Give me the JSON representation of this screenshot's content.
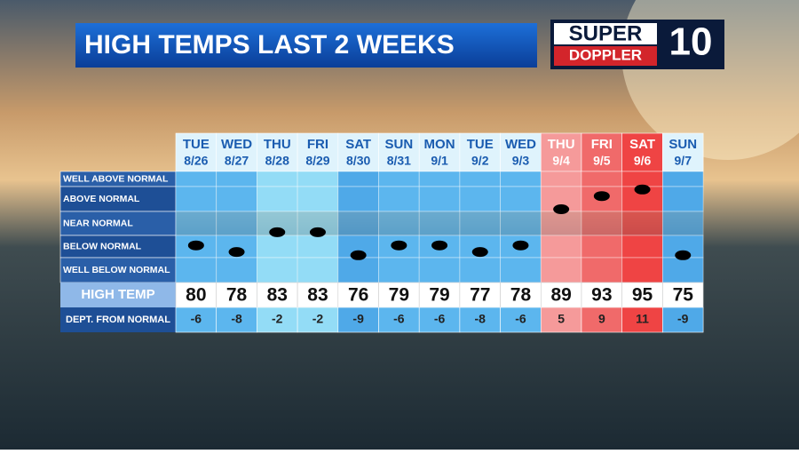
{
  "header": {
    "title": "HIGH TEMPS LAST 2 WEEKS"
  },
  "logo": {
    "line1": "SUPER",
    "line2": "DOPPLER",
    "number": "10"
  },
  "table": {
    "row_labels": [
      "WELL ABOVE NORMAL",
      "ABOVE NORMAL",
      "NEAR NORMAL",
      "BELOW NORMAL",
      "WELL BELOW NORMAL"
    ],
    "high_label": "HIGH TEMP",
    "dept_label": "DEPT. FROM NORMAL",
    "columns": [
      {
        "day": "TUE",
        "date": "8/26",
        "high": 80,
        "dept": -6,
        "color": "#5cb6ee"
      },
      {
        "day": "WED",
        "date": "8/27",
        "high": 78,
        "dept": -8,
        "color": "#5cb6ee"
      },
      {
        "day": "THU",
        "date": "8/28",
        "high": 83,
        "dept": -2,
        "color": "#93dcf6"
      },
      {
        "day": "FRI",
        "date": "8/29",
        "high": 83,
        "dept": -2,
        "color": "#93dcf6"
      },
      {
        "day": "SAT",
        "date": "8/30",
        "high": 76,
        "dept": -9,
        "color": "#4fa9e8"
      },
      {
        "day": "SUN",
        "date": "8/31",
        "high": 79,
        "dept": -6,
        "color": "#5cb6ee"
      },
      {
        "day": "MON",
        "date": "9/1",
        "high": 79,
        "dept": -6,
        "color": "#5cb6ee"
      },
      {
        "day": "TUE",
        "date": "9/2",
        "high": 77,
        "dept": -8,
        "color": "#5cb6ee"
      },
      {
        "day": "WED",
        "date": "9/3",
        "high": 78,
        "dept": -6,
        "color": "#5cb6ee"
      },
      {
        "day": "THU",
        "date": "9/4",
        "high": 89,
        "dept": 5,
        "color": "#f59a9a"
      },
      {
        "day": "FRI",
        "date": "9/5",
        "high": 93,
        "dept": 9,
        "color": "#f06a6a"
      },
      {
        "day": "SAT",
        "date": "9/6",
        "high": 95,
        "dept": 11,
        "color": "#ef4444"
      },
      {
        "day": "SUN",
        "date": "9/7",
        "high": 75,
        "dept": -9,
        "color": "#4fa9e8"
      }
    ]
  }
}
